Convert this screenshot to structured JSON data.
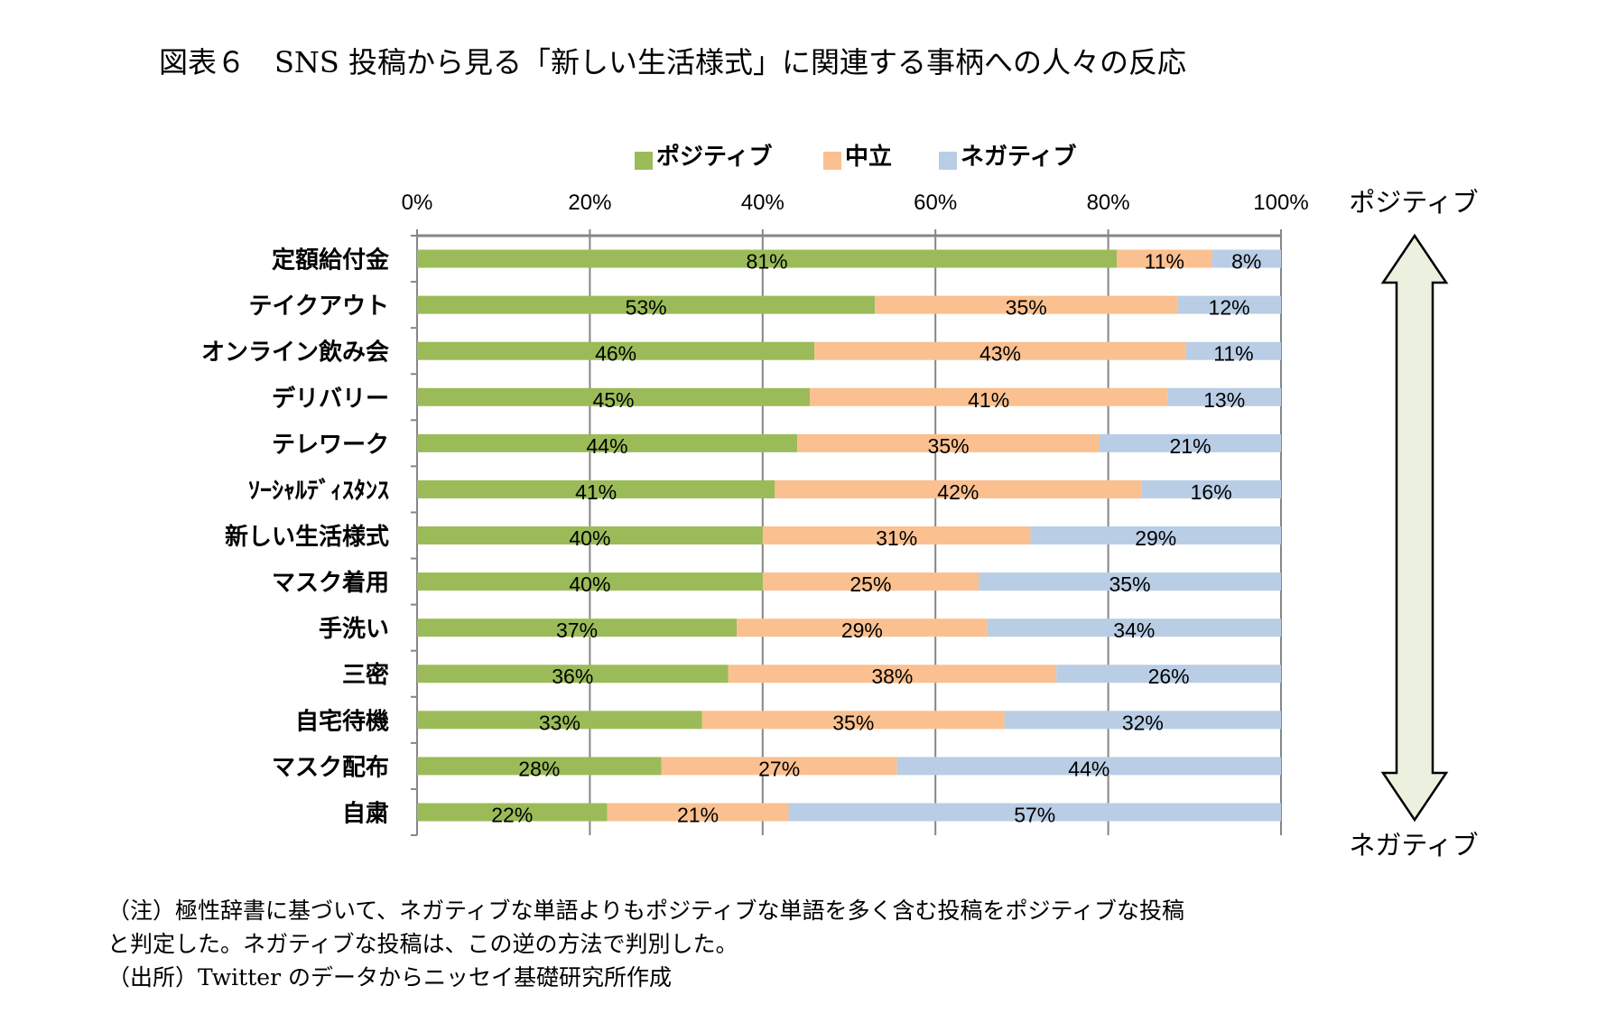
{
  "title": "図表６　SNS 投稿から見る「新しい生活様式」に関連する事柄への人々の反応",
  "chart_data": {
    "type": "bar",
    "orientation": "horizontal",
    "stacked": "100%",
    "categories": [
      "定額給付金",
      "テイクアウト",
      "オンライン飲み会",
      "デリバリー",
      "テレワーク",
      "ｿｰｼｬﾙﾃﾞｨｽﾀﾝｽ",
      "新しい生活様式",
      "マスク着用",
      "手洗い",
      "三密",
      "自宅待機",
      "マスク配布",
      "自粛"
    ],
    "series": [
      {
        "name": "ポジティブ",
        "color": "#9BBB59",
        "values": [
          81,
          53,
          46,
          45,
          44,
          41,
          40,
          40,
          37,
          36,
          33,
          28,
          22
        ]
      },
      {
        "name": "中立",
        "color": "#FAC090",
        "values": [
          11,
          35,
          43,
          41,
          35,
          42,
          31,
          25,
          29,
          38,
          35,
          27,
          21
        ]
      },
      {
        "name": "ネガティブ",
        "color": "#B9CDE5",
        "values": [
          8,
          12,
          11,
          13,
          21,
          16,
          29,
          35,
          34,
          26,
          32,
          44,
          57
        ]
      }
    ],
    "xlim": [
      0,
      100
    ],
    "x_ticks": [
      "0%",
      "20%",
      "40%",
      "60%",
      "80%",
      "100%"
    ],
    "x_axis_position": "top",
    "grid": true,
    "legend_position": "top",
    "data_label_suffix": "%",
    "arrow": {
      "top_label": "ポジティブ",
      "bottom_label": "ネガティブ",
      "fill": "#EBF1DE"
    }
  },
  "notes": [
    "（注）極性辞書に基づいて、ネガティブな単語よりもポジティブな単語を多く含む投稿をポジティブな投稿",
    "と判定した。ネガティブな投稿は、この逆の方法で判別した。",
    "（出所）Twitter のデータからニッセイ基礎研究所作成"
  ]
}
